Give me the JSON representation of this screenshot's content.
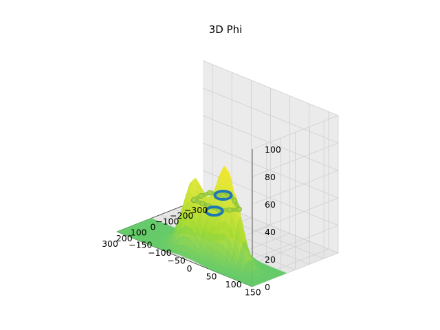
{
  "chart_data": {
    "type": "surface3d",
    "title": "3D Phi",
    "xlabel": "",
    "ylabel": "",
    "zlabel": "",
    "grid": true,
    "x_ticks": [
      "−300",
      "−200",
      "−100",
      "0",
      "100",
      "200",
      "300"
    ],
    "y_ticks": [
      "−150",
      "−100",
      "−50",
      "0",
      "50",
      "100",
      "150"
    ],
    "z_ticks": [
      "0",
      "20",
      "40",
      "60",
      "80",
      "100"
    ],
    "xlim": [
      -300,
      300
    ],
    "ylim": [
      -175,
      175
    ],
    "zlim": [
      0,
      100
    ],
    "surface": {
      "colormap": "viridis-upper",
      "peaks": [
        {
          "x": 120,
          "y": 40,
          "z": 62
        },
        {
          "x": 185,
          "y": 80,
          "z": 48
        },
        {
          "x": 150,
          "y": -30,
          "z": 44
        },
        {
          "x": 220,
          "y": -10,
          "z": 38
        }
      ]
    },
    "series": [
      {
        "marker": "ring",
        "color": "#1f77b4",
        "points": [
          {
            "x": 85,
            "y": 20,
            "z": 40
          },
          {
            "x": 255,
            "y": 60,
            "z": 40
          }
        ]
      },
      {
        "marker": "path",
        "color": "#8fc93a",
        "points": [
          {
            "x": 85,
            "y": 20,
            "z": 40
          },
          {
            "x": 110,
            "y": 45,
            "z": 45
          },
          {
            "x": 140,
            "y": 70,
            "z": 44
          },
          {
            "x": 175,
            "y": 95,
            "z": 42
          },
          {
            "x": 215,
            "y": 85,
            "z": 42
          },
          {
            "x": 250,
            "y": 70,
            "z": 42
          },
          {
            "x": 255,
            "y": 45,
            "z": 42
          },
          {
            "x": 230,
            "y": 20,
            "z": 40
          },
          {
            "x": 210,
            "y": -10,
            "z": 38
          },
          {
            "x": 180,
            "y": -20,
            "z": 36
          },
          {
            "x": 145,
            "y": -15,
            "z": 38
          },
          {
            "x": 110,
            "y": -5,
            "z": 40
          },
          {
            "x": 85,
            "y": 20,
            "z": 40
          }
        ]
      }
    ]
  }
}
